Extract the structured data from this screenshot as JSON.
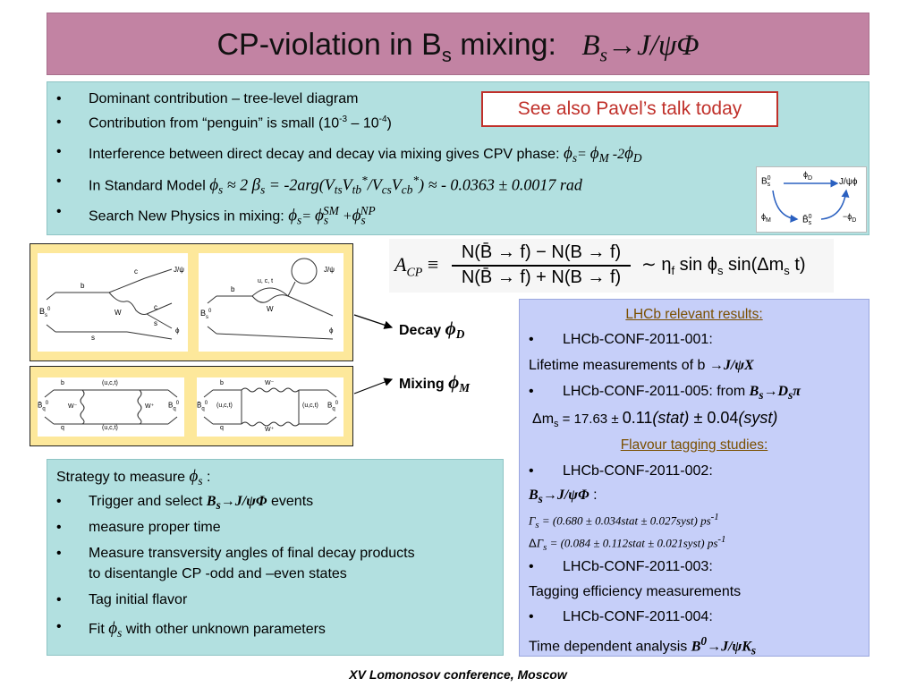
{
  "title": {
    "main": "CP-violation in B",
    "main_sub": "s",
    "main_tail": " mixing:",
    "formula_b": "B",
    "formula_sub": "s",
    "formula_rest": "→J/ψΦ"
  },
  "intro": {
    "bullet": "•",
    "items": {
      "b1": "Dominant contribution – tree-level diagram",
      "b2_pre": "Contribution from “penguin” is small (10",
      "b2_exp1": "-3",
      "b2_mid": " – 10",
      "b2_exp2": "-4",
      "b2_post": ")",
      "b3_text": "Interference between direct decay and decay via mixing gives CPV phase: ",
      "b3_phi": "ϕ",
      "b3_s": "s",
      "b3_eq": "= ",
      "b3_M": "M",
      "b3_m2": " -2",
      "b3_D": "D",
      "b4_text": "In Standard Model ",
      "b4_approx": " ≈ 2 ",
      "b4_beta": "β",
      "b4_s": "s",
      "b4_arg": " = -2arg(V",
      "b4_ts": "ts",
      "b4_V": "V",
      "b4_tb": "tb",
      "b4_star": "*",
      "b4_slash": "/V",
      "b4_cs": "cs",
      "b4_cb": "cb",
      "b4_close": ")",
      "b4_val": " ≈ - 0.0363 ± 0.0017 rad",
      "b5_text": "Search New Physics in mixing: ",
      "b5_sm": "SM",
      "b5_plus": " +",
      "b5_np": "NP"
    }
  },
  "pavel_note": "See also Pavel’s talk today",
  "phase_diagram": {
    "bs0": "B",
    "bs0_sup": "0",
    "bs0_sub": "s",
    "jpsiphi": "J/ψϕ",
    "phiD": "ϕ",
    "phiD_sub": "D",
    "phiM": "ϕ",
    "phiM_sub": "M",
    "bsbar": "B̄",
    "minus_phiD": "−ϕ",
    "minus_phiD_sub": "D"
  },
  "feynman": {
    "decay_label": "Decay ",
    "decay_phi": "ϕ",
    "decay_sub": "D",
    "mixing_label": "Mixing ",
    "mixing_phi": "ϕ",
    "mixing_sub": "M",
    "tree": {
      "b": "b",
      "c1": "c",
      "c2": "c",
      "s1": "s",
      "s2": "s",
      "W": "W",
      "Bs": "B",
      "Bs_sub": "s",
      "Bs_sup": "0",
      "jpsi": "J/ψ",
      "phi": "ϕ"
    },
    "penguin": {
      "b": "b",
      "uct": "u, c, t",
      "W": "W",
      "Bs": "B",
      "Bs_sub": "s",
      "Bs_sup": "0",
      "jpsi": "J/ψ",
      "phi": "ϕ"
    },
    "box1": {
      "b": "b",
      "q": "q",
      "uct1": "(u,c,t)",
      "uct2": "(u,c,t)",
      "Wm": "W⁻",
      "Wp": "W⁺",
      "Bq": "B̄",
      "Bq_sub": "q",
      "Bq_sup": "0",
      "Bbq": "B",
      "Bbq_sub": "q",
      "Bbq_sup": "0"
    },
    "box2": {
      "b": "b",
      "q": "q",
      "uct1": "(u,c,t)",
      "uct2": "(u,c,t)",
      "Wm": "W⁻",
      "Wp": "W⁺",
      "Bq": "B̄",
      "Bq_sub": "q",
      "Bq_sup": "0",
      "Bbq": "B",
      "Bbq_sub": "q",
      "Bbq_sup": "0"
    }
  },
  "acp": {
    "lhs": "A",
    "lhs_sub": "CP",
    "equiv": "≡",
    "num": "N(B̄ → f) − N(B → f)",
    "den": "N(B̄ → f) + N(B → f)",
    "rhs": "∼ η",
    "rhs_sub": "f",
    "rhs_sin": " sin ϕ",
    "rhs_s": "s",
    "rhs_tail": " sin(Δm",
    "rhs_tail_s": "s",
    "rhs_t": " t)"
  },
  "lhcb": {
    "heading": "LHCb relevant results:",
    "bullet": "•",
    "conf1": "LHCb-CONF-2011-001:",
    "lifetime_pre": "Lifetime measurements of b ",
    "lifetime_arrow": "→J/ψX",
    "conf5_pre": "LHCb-CONF-2011-005: from ",
    "conf5_B": "B",
    "conf5_s": "s",
    "conf5_arrow": "→D",
    "conf5_s2": "s",
    "conf5_pi": "π",
    "dms_pre": "Δm",
    "dms_sub": "s",
    "dms_eq": " = 17.63 ± ",
    "dms_val": "0.11",
    "dms_stat": "(stat)",
    "dms_pm": " ± 0.04",
    "dms_syst": "(syst)",
    "tagging_heading": "Flavour tagging studies:",
    "conf2": "LHCb-CONF-2011-002:",
    "bsjpsiphi_B": "B",
    "bsjpsiphi_s": "s",
    "bsjpsiphi_rest": "→J/ψΦ",
    "bsjpsiphi_colon": " :",
    "gamma_G": "Γ",
    "gamma_s": "s",
    "gamma_val": " = (0.680 ± 0.034stat ± 0.027syst) ps",
    "gamma_exp": "-1",
    "dgamma_D": "Δ",
    "dgamma_G": "Γ",
    "dgamma_s": "s",
    "dgamma_val": " = (0.084 ± 0.112stat ± 0.021syst) ps",
    "dgamma_exp": "-1",
    "conf3": "LHCb-CONF-2011-003:",
    "tagging_eff": "Tagging efficiency measurements",
    "conf4": "LHCb-CONF-2011-004:",
    "timedep_pre": "Time dependent analysis ",
    "timedep_B": "B",
    "timedep_0": "0",
    "timedep_rest": "→J/ψK",
    "timedep_s": "s"
  },
  "strategy": {
    "heading": "Strategy to measure ",
    "heading_phi": "ϕ",
    "heading_s": "s",
    "heading_colon": " :",
    "bullet": "•",
    "i1_pre": "Trigger and select ",
    "i1_B": "B",
    "i1_s": "s",
    "i1_rest": "→J/ψΦ",
    "i1_post": " events",
    "i2": "measure proper time",
    "i3_l1": "Measure transversity angles of final decay products",
    "i3_l2": "to disentangle CP -odd and –even states",
    "i4": "Tag initial flavor",
    "i5_pre": "Fit ",
    "i5_phi": "ϕ",
    "i5_s": "s",
    "i5_post": " with other unknown parameters"
  },
  "footer": "XV Lomonosov conference, Moscow",
  "colors": {
    "title_bg": "#c283a3",
    "panel_bg": "#b2e0e0",
    "results_bg": "#c6cff9",
    "feynman_bg": "#fde89b",
    "note_red": "#c0302a",
    "heading_brown": "#7a4f00"
  }
}
